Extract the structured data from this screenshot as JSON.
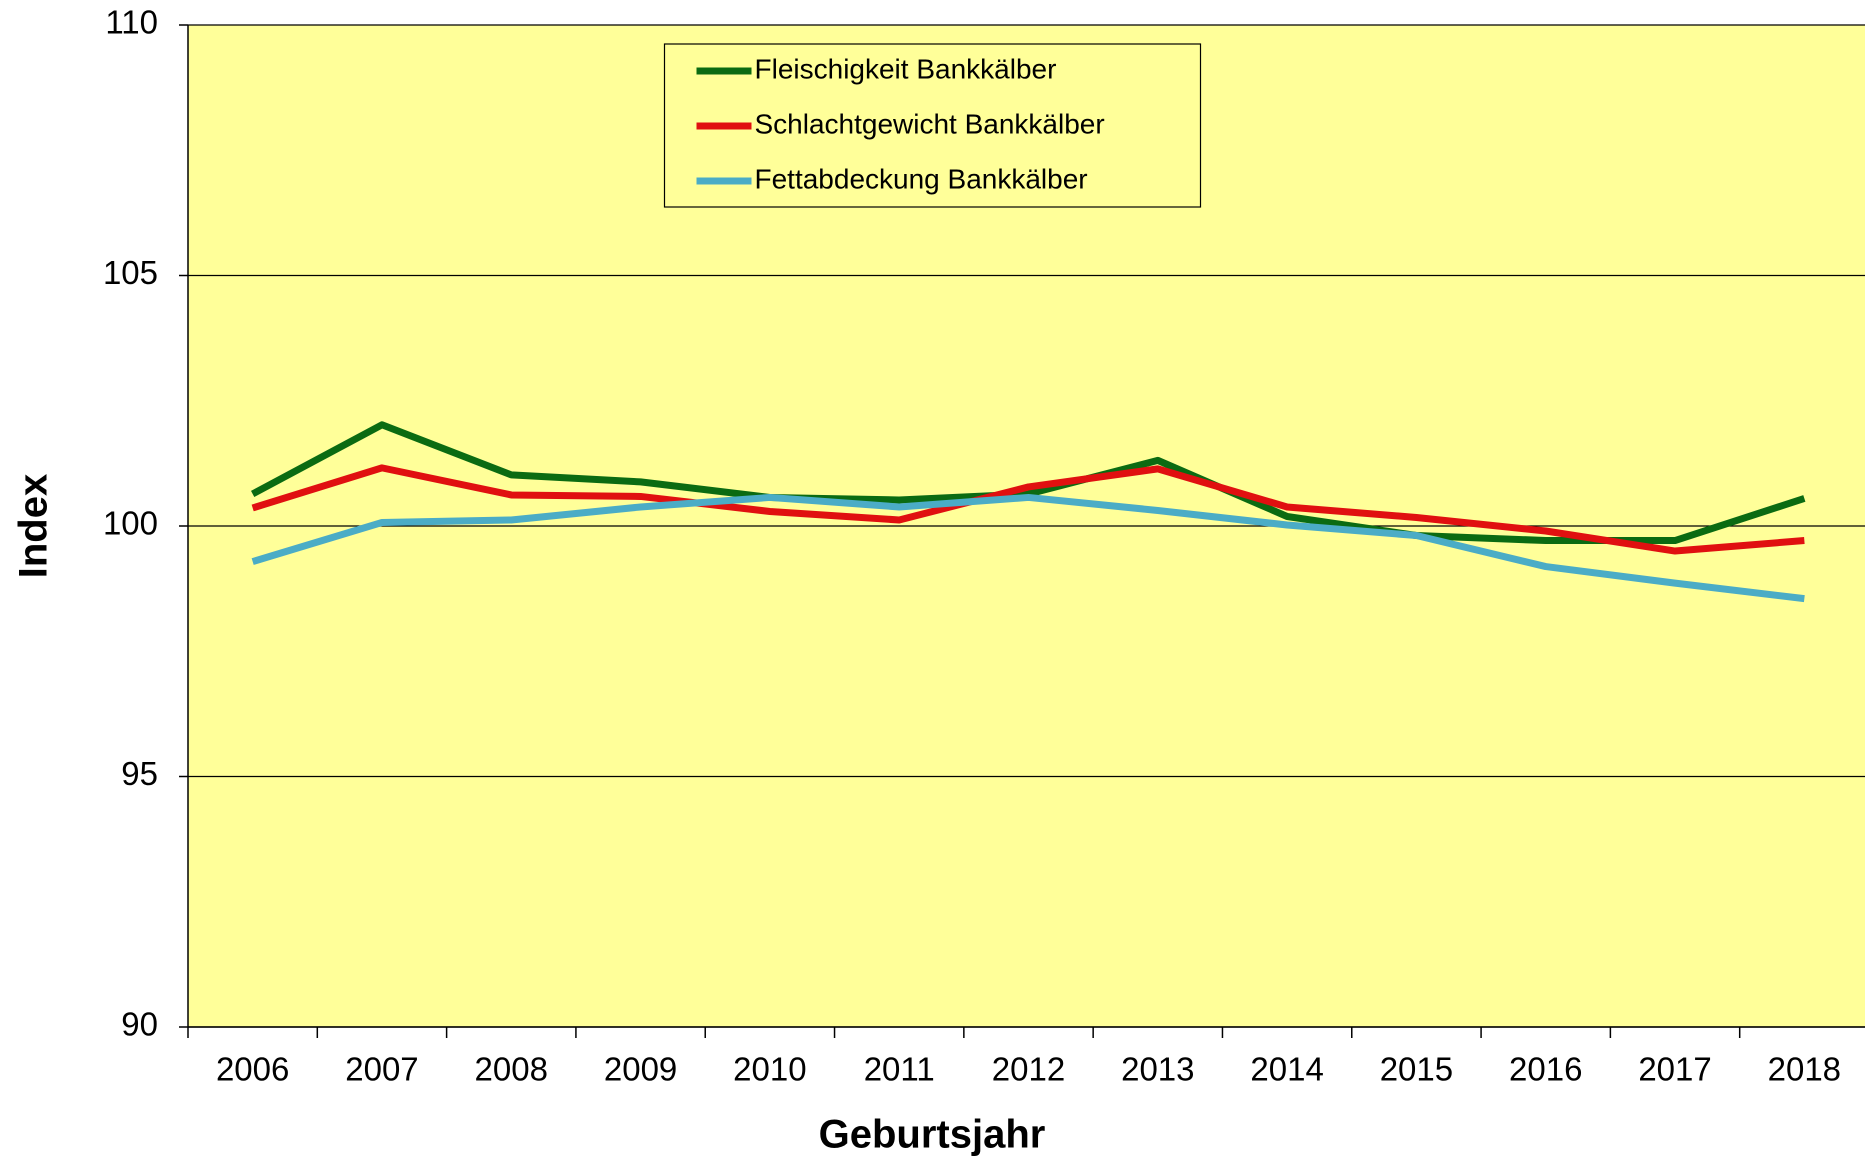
{
  "chart_data": {
    "type": "line",
    "x_label": "Geburtsjahr",
    "y_label": "Index",
    "categories": [
      "2006",
      "2007",
      "2008",
      "2009",
      "2010",
      "2011",
      "2012",
      "2013",
      "2014",
      "2015",
      "2016",
      "2017",
      "2018"
    ],
    "series": [
      {
        "name": "Fleischigkeit Bankkälber",
        "color": "#0b6b12",
        "values": [
          100.64,
          102.02,
          101.02,
          100.88,
          100.57,
          100.52,
          100.64,
          101.31,
          100.19,
          99.81,
          99.71,
          99.71,
          100.55
        ]
      },
      {
        "name": "Schlachtgewicht Bankkälber",
        "color": "#e01010",
        "values": [
          100.36,
          101.16,
          100.62,
          100.59,
          100.29,
          100.12,
          100.78,
          101.14,
          100.38,
          100.17,
          99.9,
          99.5,
          99.71
        ]
      },
      {
        "name": "Fettabdeckung Bankkälber",
        "color": "#4bacc6",
        "values": [
          99.29,
          100.07,
          100.12,
          100.38,
          100.57,
          100.38,
          100.57,
          100.31,
          100.02,
          99.81,
          99.19,
          98.86,
          98.55
        ]
      }
    ],
    "ylim": [
      90,
      110
    ],
    "yticks": [
      90,
      95,
      100,
      105,
      110
    ],
    "grid": true,
    "legend": "top",
    "background": "#ffff99"
  }
}
